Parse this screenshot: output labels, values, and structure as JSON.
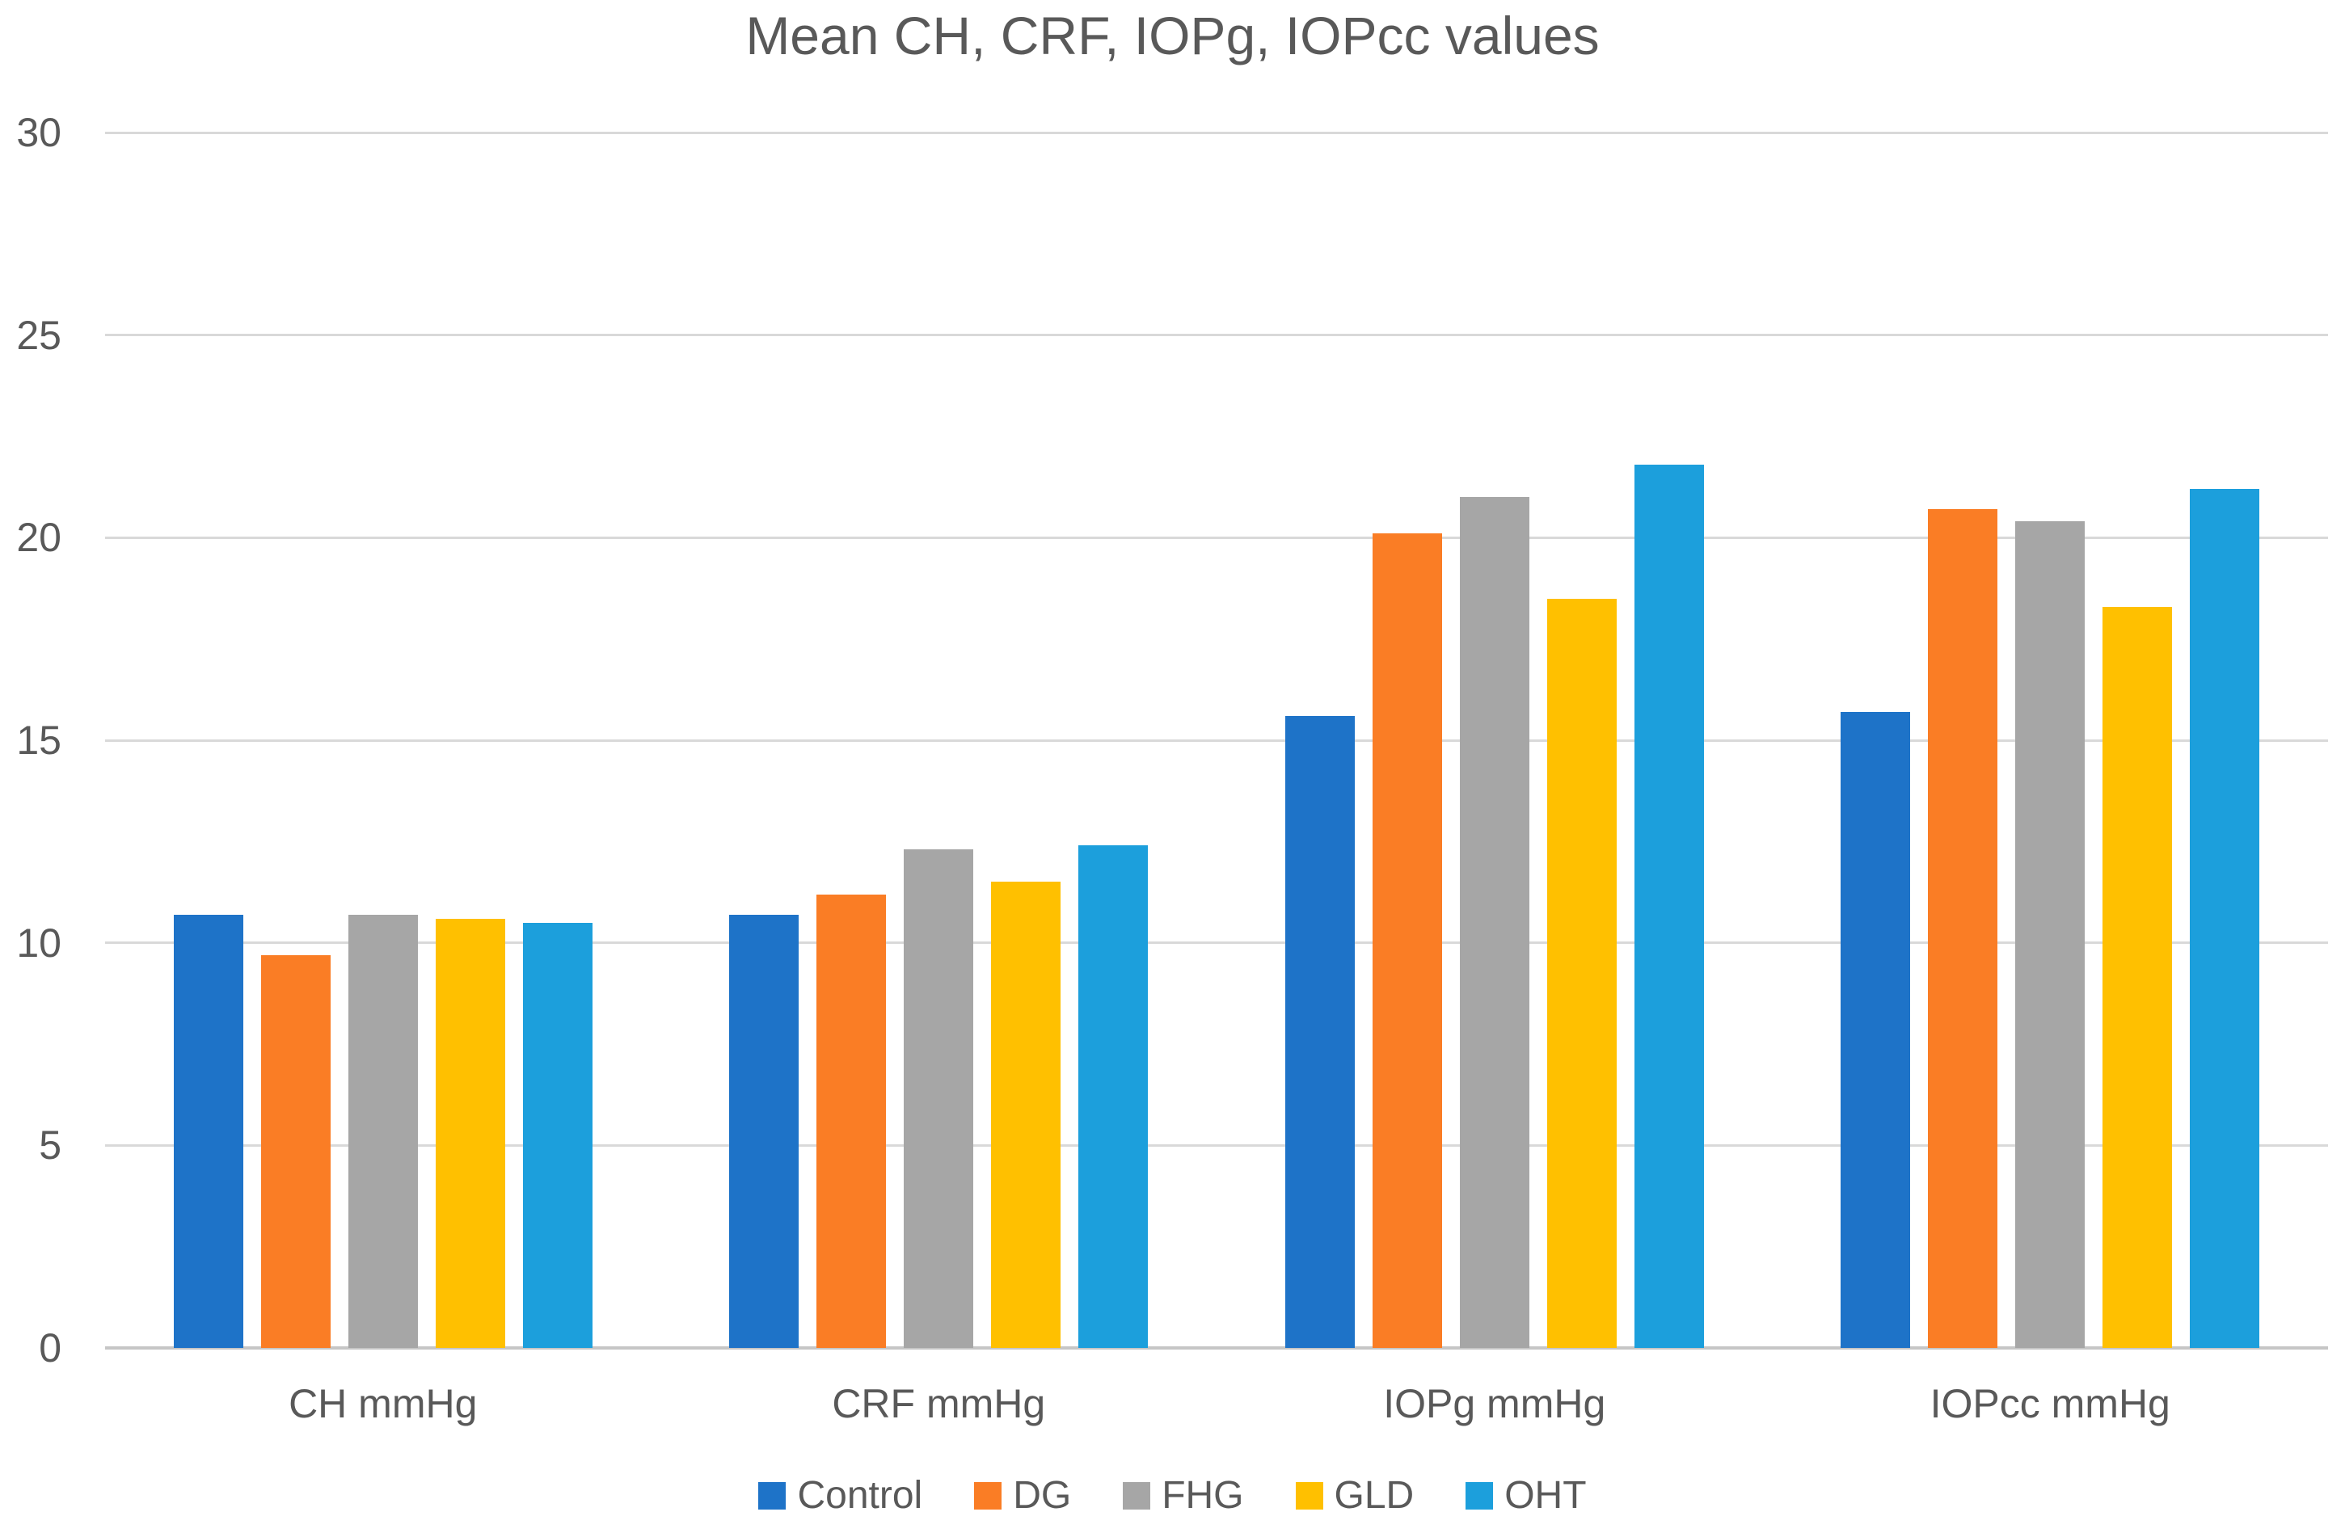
{
  "chart_data": {
    "type": "bar",
    "title": "Mean CH, CRF, IOPg, IOPcc values",
    "categories": [
      "CH mmHg",
      "CRF mmHg",
      "IOPg mmHg",
      "IOPcc mmHg"
    ],
    "series": [
      {
        "name": "Control",
        "color": "#1E73C8",
        "values": [
          10.7,
          10.7,
          15.6,
          15.7
        ]
      },
      {
        "name": "DG",
        "color": "#FA7D25",
        "values": [
          9.7,
          11.2,
          20.1,
          20.7
        ]
      },
      {
        "name": "FHG",
        "color": "#A6A6A6",
        "values": [
          10.7,
          12.3,
          21.0,
          20.4
        ]
      },
      {
        "name": "GLD",
        "color": "#FFC000",
        "values": [
          10.6,
          11.5,
          18.5,
          18.3
        ]
      },
      {
        "name": "OHT",
        "color": "#1C9FDC",
        "values": [
          10.5,
          12.4,
          21.8,
          21.2
        ]
      }
    ],
    "xlabel": "",
    "ylabel": "",
    "ylim": [
      0,
      30
    ],
    "yticks": [
      0,
      5,
      10,
      15,
      20,
      25,
      30
    ],
    "grid": true,
    "legend_position": "bottom",
    "colors": {
      "text": "#595959",
      "gridline": "#D9D9D9",
      "axis_line": "#C6C6C6",
      "background": "#FFFFFF"
    }
  }
}
